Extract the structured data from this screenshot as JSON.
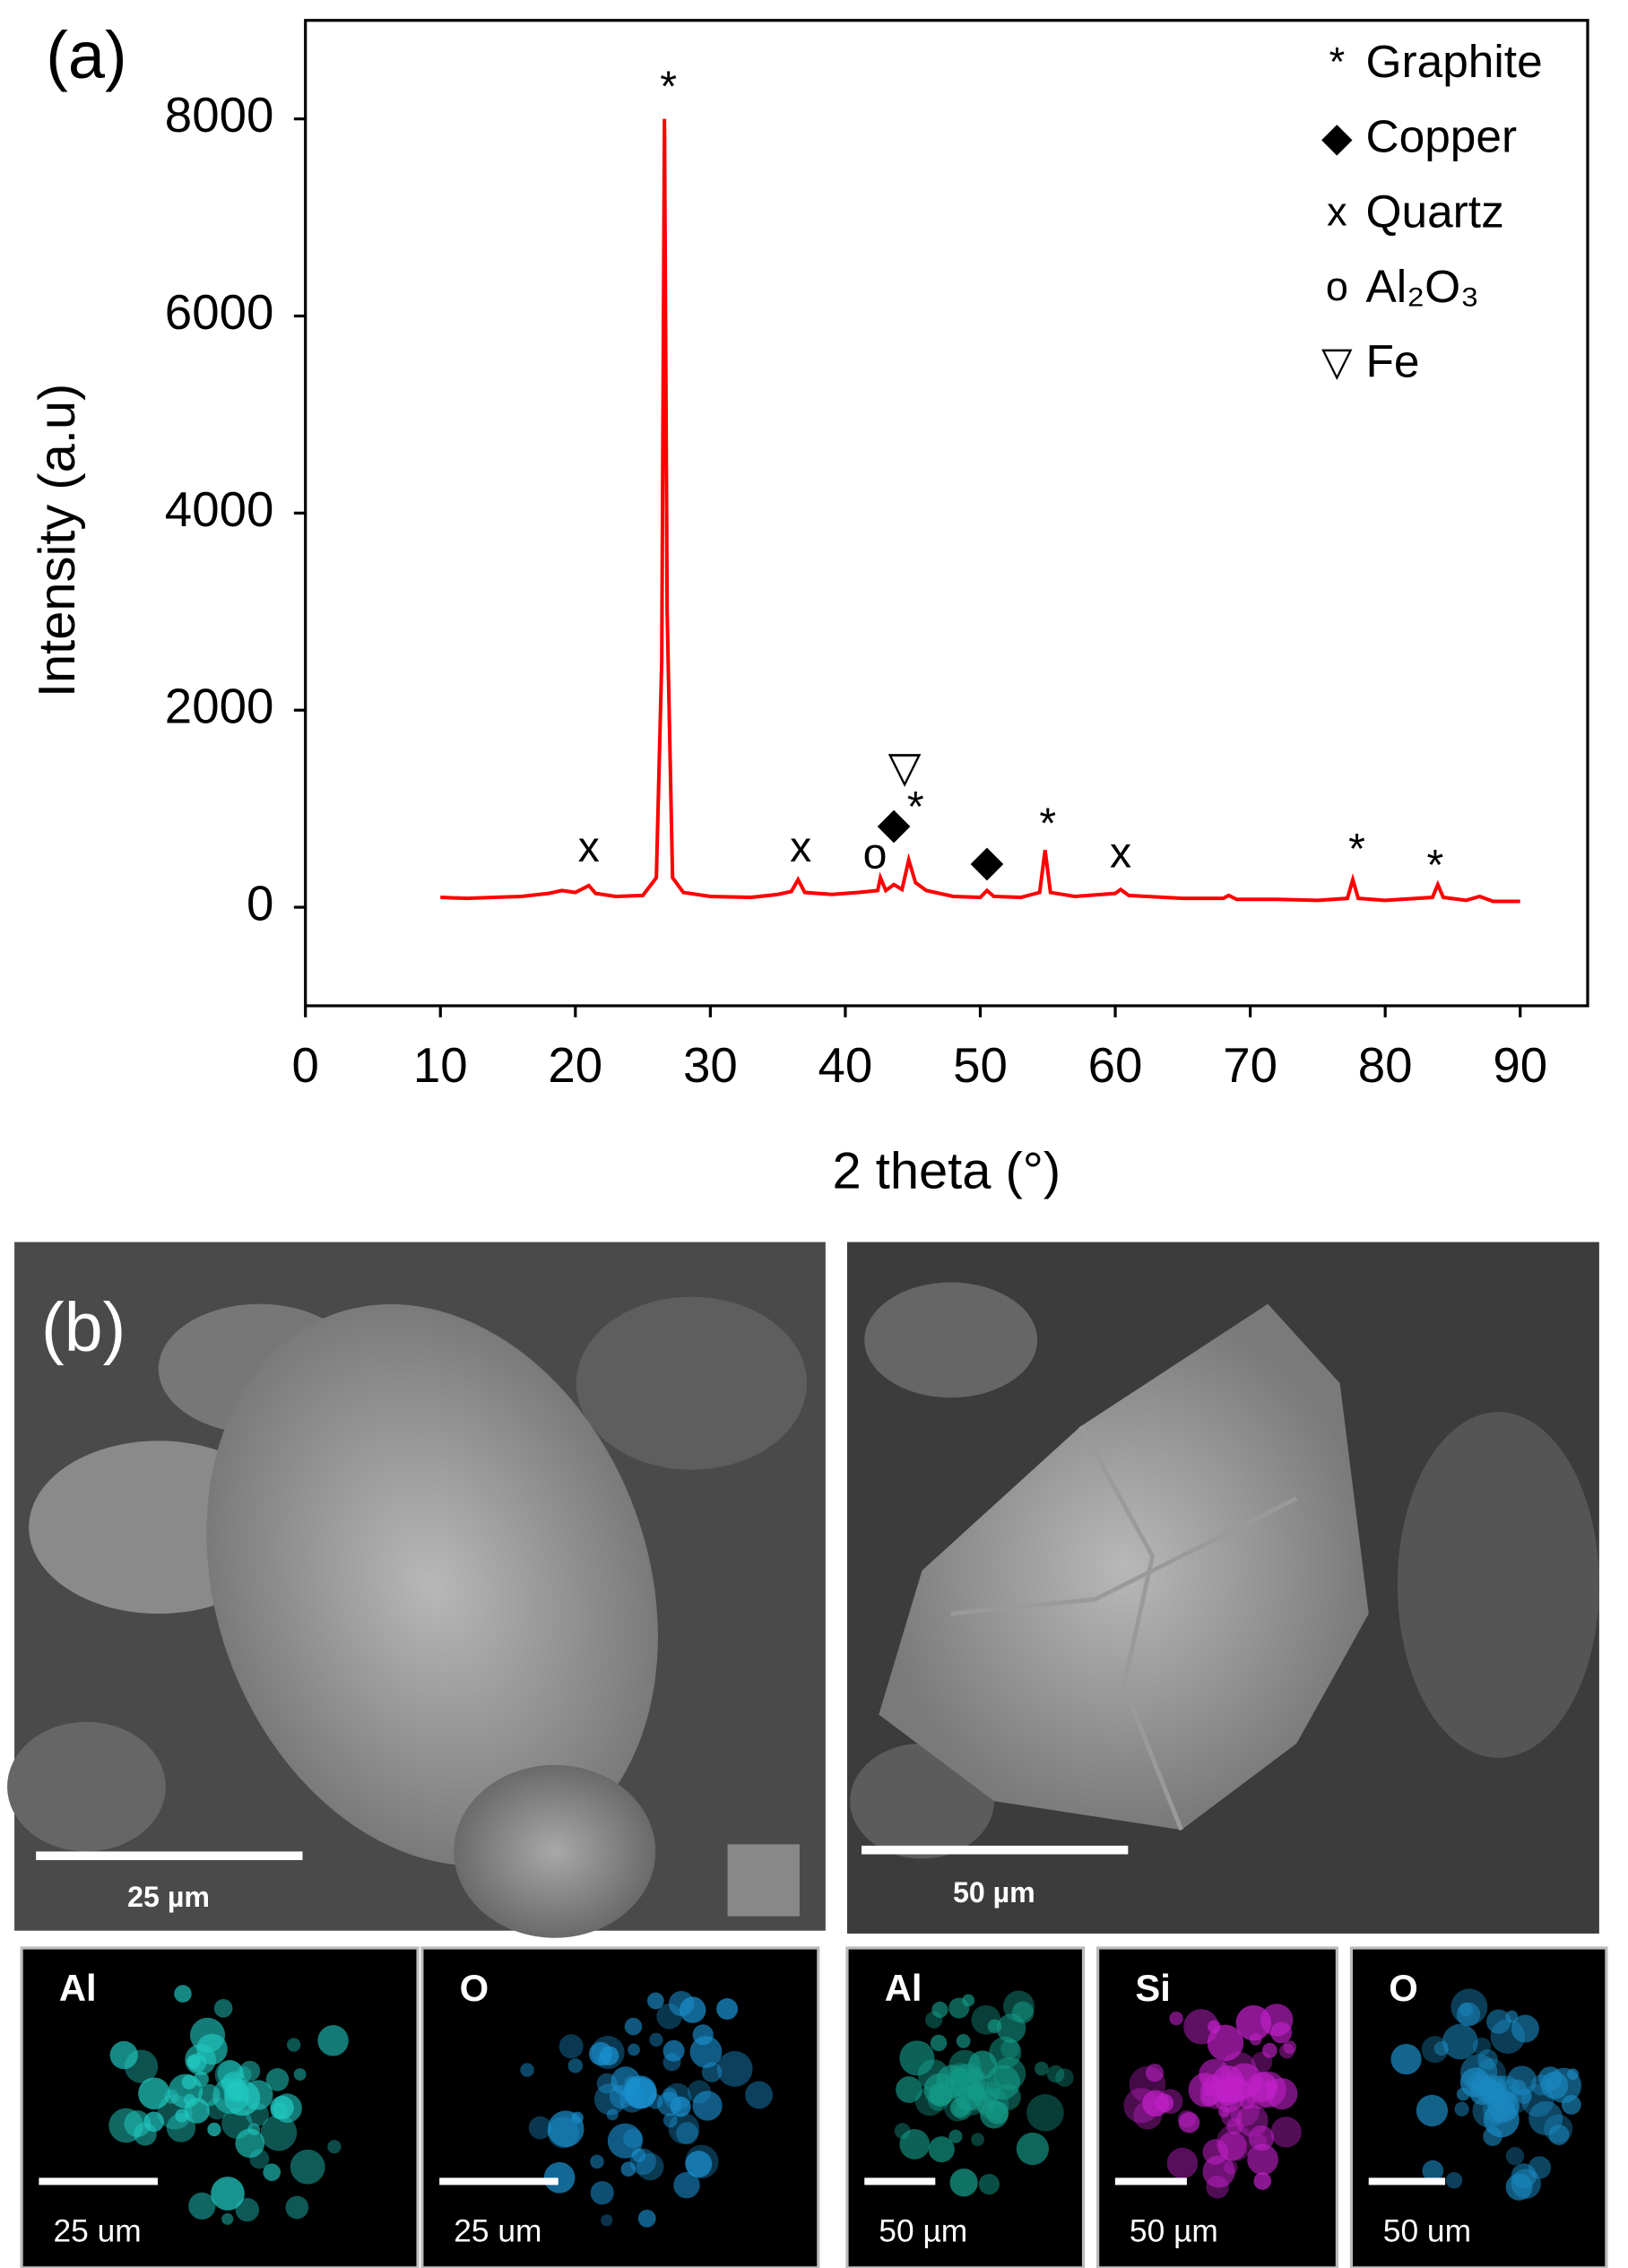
{
  "chart_data": {
    "type": "line",
    "panel_label": "(a)",
    "x_label": "2 theta (°)",
    "y_label": "Intensity (a.u)",
    "xlim": [
      0,
      95
    ],
    "ylim": [
      -1000,
      9000
    ],
    "xticks": [
      0,
      10,
      20,
      30,
      40,
      50,
      60,
      70,
      80,
      90
    ],
    "yticks": [
      0,
      2000,
      4000,
      6000,
      8000
    ],
    "x": [
      10,
      12,
      14,
      16,
      18,
      19,
      20,
      21,
      21.5,
      23,
      25,
      26,
      26.4,
      26.6,
      26.8,
      27.2,
      28,
      30,
      33,
      35,
      36,
      36.5,
      37,
      39,
      41,
      42.4,
      42.6,
      43,
      43.6,
      44.2,
      44.7,
      45.2,
      46,
      48,
      50,
      50.5,
      51,
      53,
      54.4,
      54.8,
      55.2,
      57,
      60,
      60.4,
      61,
      65,
      68,
      68.4,
      69,
      72,
      75,
      77.2,
      77.6,
      78,
      80,
      83.5,
      83.9,
      84.3,
      86,
      87,
      88,
      90
    ],
    "series": [
      {
        "color": "#ff0000",
        "values": [
          100,
          90,
          100,
          110,
          140,
          170,
          150,
          220,
          140,
          110,
          120,
          300,
          2500,
          8000,
          3000,
          300,
          150,
          110,
          100,
          130,
          160,
          280,
          150,
          130,
          150,
          170,
          300,
          170,
          230,
          180,
          480,
          250,
          170,
          110,
          100,
          170,
          110,
          100,
          150,
          580,
          150,
          110,
          140,
          180,
          120,
          90,
          90,
          120,
          80,
          80,
          70,
          90,
          280,
          90,
          70,
          100,
          230,
          100,
          70,
          110,
          60,
          60
        ]
      }
    ],
    "annotations": [
      {
        "text": "x",
        "x": 21,
        "y": 580
      },
      {
        "text": "*",
        "x": 26.9,
        "y": 8300
      },
      {
        "text": "x",
        "x": 36.7,
        "y": 580
      },
      {
        "text": "o",
        "x": 42.2,
        "y": 510
      },
      {
        "text": "◆",
        "x": 43.6,
        "y": 820
      },
      {
        "text": "*",
        "x": 45.2,
        "y": 990
      },
      {
        "text": "▽",
        "x": 44.4,
        "y": 1390
      },
      {
        "text": "◆",
        "x": 50.5,
        "y": 440
      },
      {
        "text": "*",
        "x": 55,
        "y": 820
      },
      {
        "text": "x",
        "x": 60.4,
        "y": 520
      },
      {
        "text": "*",
        "x": 77.9,
        "y": 560
      },
      {
        "text": "*",
        "x": 83.7,
        "y": 400
      }
    ],
    "legend": [
      {
        "symbol": "*",
        "name": "Graphite"
      },
      {
        "symbol": "◆",
        "name": "Copper"
      },
      {
        "symbol": "x",
        "name": "Quartz"
      },
      {
        "symbol": "o",
        "name": "Al₂O₃"
      },
      {
        "symbol": "▽",
        "name": "Fe"
      }
    ]
  },
  "panels": {
    "label": "(b)",
    "sem": [
      {
        "scale": "25 µm"
      },
      {
        "scale": "50 µm"
      }
    ],
    "maps": [
      {
        "element": "Al",
        "scale": "25 um",
        "color": "#20c8c0"
      },
      {
        "element": "O",
        "scale": "25 um",
        "color": "#1a90d0"
      },
      {
        "element": "Al",
        "scale": "50 µm",
        "color": "#149a88"
      },
      {
        "element": "Si",
        "scale": "50 µm",
        "color": "#c020c8"
      },
      {
        "element": "O",
        "scale": "50 um",
        "color": "#1a88c0"
      }
    ]
  }
}
